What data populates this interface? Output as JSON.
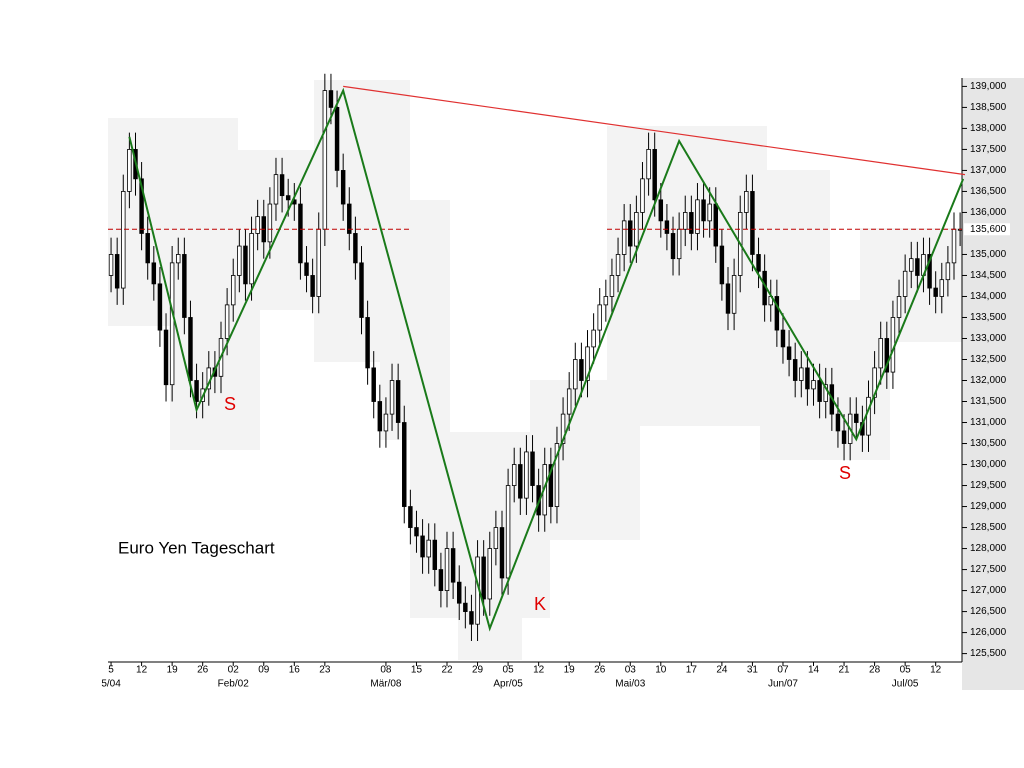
{
  "chart_data": {
    "type": "candlestick",
    "title": "Euro Yen Tageschart",
    "x": [
      0,
      1,
      2,
      3,
      4,
      5,
      6,
      7,
      8,
      9,
      10,
      11,
      12,
      13,
      14,
      15,
      16,
      17,
      18,
      19,
      20,
      21,
      22,
      23,
      24,
      25,
      26,
      27,
      28,
      29,
      30,
      31,
      32,
      33,
      34,
      35,
      36,
      37,
      38,
      39,
      40,
      41,
      42,
      43,
      44,
      45,
      46,
      47,
      48,
      49,
      50,
      51,
      52,
      53,
      54,
      55,
      56,
      57,
      58,
      59,
      60,
      61,
      62,
      63,
      64,
      65,
      66,
      67,
      68,
      69,
      70,
      71,
      72,
      73,
      74,
      75,
      76,
      77,
      78,
      79,
      80,
      81,
      82,
      83,
      84,
      85,
      86,
      87,
      88,
      89,
      90,
      91,
      92,
      93,
      94,
      95,
      96,
      97,
      98,
      99,
      100,
      101,
      102,
      103,
      104,
      105,
      106,
      107,
      108,
      109,
      110,
      111,
      112,
      113,
      114,
      115,
      116,
      117,
      118,
      119,
      120,
      121,
      122,
      123,
      124,
      125,
      126,
      127,
      128,
      129,
      130,
      131,
      132,
      133,
      134,
      135,
      136,
      137,
      138,
      139
    ],
    "open": [
      134.5,
      135.0,
      134.2,
      136.5,
      137.5,
      136.8,
      135.5,
      134.8,
      134.3,
      133.2,
      131.9,
      134.8,
      135.0,
      133.5,
      132.0,
      131.5,
      131.8,
      132.3,
      132.1,
      133.0,
      133.8,
      134.5,
      135.2,
      134.3,
      135.5,
      135.9,
      135.3,
      136.2,
      136.9,
      136.4,
      136.3,
      136.2,
      134.8,
      134.5,
      134.0,
      135.6,
      138.9,
      138.5,
      137.0,
      136.2,
      135.5,
      134.8,
      133.5,
      132.3,
      131.5,
      130.8,
      131.2,
      132.0,
      131.0,
      129.0,
      128.5,
      128.3,
      127.8,
      128.2,
      127.5,
      127.0,
      128.0,
      127.2,
      126.7,
      126.5,
      126.2,
      127.8,
      126.8,
      128.0,
      128.5,
      127.3,
      129.5,
      130.0,
      129.2,
      130.3,
      129.5,
      128.8,
      130.0,
      129.0,
      130.5,
      131.2,
      131.8,
      132.5,
      132.0,
      132.8,
      133.2,
      133.8,
      134.0,
      134.5,
      135.0,
      135.8,
      135.2,
      136.0,
      136.8,
      137.5,
      136.3,
      135.8,
      135.5,
      134.9,
      135.6,
      136.0,
      135.5,
      136.3,
      135.8,
      136.2,
      135.2,
      134.3,
      133.6,
      134.5,
      136.0,
      136.5,
      135.0,
      134.6,
      133.8,
      134.0,
      133.2,
      132.8,
      132.5,
      132.0,
      132.3,
      131.8,
      132.0,
      131.5,
      131.9,
      131.2,
      130.8,
      130.5,
      131.2,
      131.0,
      130.7,
      131.6,
      132.3,
      133.0,
      132.2,
      133.5,
      134.0,
      134.6,
      134.9,
      134.5,
      135.0,
      134.2,
      134.0,
      134.4,
      134.8,
      135.6
    ],
    "high": [
      135.4,
      135.4,
      136.9,
      137.9,
      137.9,
      137.2,
      135.9,
      135.2,
      134.7,
      133.6,
      135.2,
      135.4,
      135.4,
      133.9,
      132.4,
      132.2,
      132.7,
      132.7,
      133.4,
      134.2,
      134.9,
      135.6,
      135.6,
      135.9,
      136.3,
      136.3,
      136.6,
      137.3,
      137.3,
      136.8,
      136.7,
      136.6,
      135.2,
      134.9,
      136.0,
      139.3,
      139.3,
      138.9,
      137.4,
      136.6,
      135.9,
      135.2,
      133.9,
      132.7,
      131.9,
      131.6,
      132.4,
      132.4,
      131.4,
      129.4,
      128.9,
      128.7,
      128.6,
      128.6,
      127.9,
      128.4,
      128.4,
      127.6,
      127.1,
      126.9,
      128.2,
      128.2,
      128.4,
      128.9,
      128.9,
      129.9,
      130.4,
      130.4,
      130.7,
      130.7,
      129.9,
      130.4,
      130.4,
      130.9,
      131.6,
      132.2,
      132.9,
      132.9,
      133.2,
      133.6,
      134.2,
      134.4,
      134.9,
      135.4,
      136.2,
      136.2,
      136.4,
      137.2,
      137.9,
      137.9,
      136.7,
      136.2,
      135.9,
      136.0,
      136.4,
      136.4,
      136.7,
      136.7,
      136.6,
      136.6,
      135.6,
      134.7,
      134.9,
      136.4,
      136.9,
      136.9,
      135.4,
      135.0,
      134.4,
      134.4,
      133.6,
      133.2,
      132.9,
      132.7,
      132.7,
      132.4,
      132.4,
      132.3,
      132.3,
      131.6,
      131.2,
      131.6,
      131.6,
      131.4,
      132.0,
      132.7,
      133.4,
      133.4,
      133.9,
      134.4,
      135.0,
      135.3,
      135.3,
      135.4,
      135.4,
      134.6,
      134.8,
      135.2,
      136.0,
      136.0
    ],
    "low": [
      134.1,
      133.8,
      133.8,
      136.1,
      136.4,
      135.1,
      134.4,
      133.9,
      132.8,
      131.5,
      131.5,
      134.4,
      133.1,
      131.6,
      131.1,
      131.1,
      131.4,
      131.7,
      131.7,
      132.6,
      133.4,
      134.1,
      133.9,
      133.9,
      135.1,
      134.9,
      134.9,
      135.8,
      136.0,
      135.9,
      135.8,
      134.4,
      134.1,
      133.6,
      133.6,
      135.2,
      138.1,
      136.6,
      135.8,
      135.1,
      134.4,
      133.1,
      131.9,
      131.1,
      130.4,
      130.4,
      130.8,
      130.6,
      128.6,
      128.1,
      127.9,
      127.4,
      127.4,
      127.1,
      126.6,
      126.6,
      126.8,
      126.3,
      126.1,
      125.8,
      125.8,
      126.4,
      126.4,
      127.6,
      126.9,
      126.9,
      129.1,
      128.8,
      128.8,
      129.1,
      128.4,
      128.4,
      128.6,
      128.6,
      130.1,
      130.8,
      131.4,
      131.6,
      131.6,
      132.4,
      132.8,
      133.4,
      133.6,
      134.1,
      134.6,
      134.8,
      134.8,
      135.6,
      136.4,
      135.9,
      135.4,
      135.1,
      134.5,
      134.5,
      135.2,
      135.1,
      135.1,
      135.4,
      135.4,
      134.8,
      133.9,
      133.2,
      133.2,
      134.1,
      135.6,
      134.6,
      134.2,
      133.4,
      133.4,
      132.8,
      132.4,
      132.1,
      131.6,
      131.6,
      131.4,
      131.4,
      131.1,
      131.1,
      130.8,
      130.4,
      130.1,
      130.1,
      130.6,
      130.3,
      130.3,
      131.2,
      131.9,
      131.8,
      131.8,
      133.1,
      133.6,
      134.2,
      134.1,
      134.1,
      133.8,
      133.6,
      133.6,
      134.0,
      134.4,
      135.2
    ],
    "close": [
      135.0,
      134.2,
      136.5,
      137.5,
      136.8,
      135.5,
      134.8,
      134.3,
      133.2,
      131.9,
      134.8,
      135.0,
      133.5,
      132.0,
      131.5,
      131.8,
      132.3,
      132.1,
      133.0,
      133.8,
      134.5,
      135.2,
      134.3,
      135.5,
      135.9,
      135.3,
      136.2,
      136.9,
      136.4,
      136.3,
      136.2,
      134.8,
      134.5,
      134.0,
      135.6,
      138.9,
      138.5,
      137.0,
      136.2,
      135.5,
      134.8,
      133.5,
      132.3,
      131.5,
      130.8,
      131.2,
      132.0,
      131.0,
      129.0,
      128.5,
      128.3,
      127.8,
      128.2,
      127.5,
      127.0,
      128.0,
      127.2,
      126.7,
      126.5,
      126.2,
      127.8,
      126.8,
      128.0,
      128.5,
      127.3,
      129.5,
      130.0,
      129.2,
      130.3,
      129.5,
      128.8,
      130.0,
      129.0,
      130.5,
      131.2,
      131.8,
      132.5,
      132.0,
      132.8,
      133.2,
      133.8,
      134.0,
      134.5,
      135.0,
      135.8,
      135.2,
      136.0,
      136.8,
      137.5,
      136.3,
      135.8,
      135.5,
      134.9,
      135.6,
      136.0,
      135.5,
      136.3,
      135.8,
      136.2,
      135.2,
      134.3,
      133.6,
      134.5,
      136.0,
      136.5,
      135.0,
      134.6,
      133.8,
      134.0,
      133.2,
      132.8,
      132.5,
      132.0,
      132.3,
      131.8,
      132.0,
      131.5,
      131.9,
      131.2,
      130.8,
      130.5,
      131.2,
      131.0,
      130.7,
      131.6,
      132.3,
      133.0,
      132.2,
      133.5,
      134.0,
      134.6,
      134.9,
      134.5,
      135.0,
      134.2,
      134.0,
      134.4,
      134.8,
      135.6,
      135.6
    ],
    "up_color": "#ffffff",
    "down_color": "#000000",
    "xlim": [
      -0.5,
      139.8
    ],
    "ylim": [
      125.3,
      139.2
    ],
    "xticks": [
      {
        "value": 0,
        "label": "5"
      },
      {
        "value": 5,
        "label": "12"
      },
      {
        "value": 10,
        "label": "19"
      },
      {
        "value": 15,
        "label": "26"
      },
      {
        "value": 20,
        "label": "02"
      },
      {
        "value": 25,
        "label": "09"
      },
      {
        "value": 30,
        "label": "16"
      },
      {
        "value": 35,
        "label": "23"
      },
      {
        "value": 45,
        "label": "08"
      },
      {
        "value": 50,
        "label": "15"
      },
      {
        "value": 55,
        "label": "22"
      },
      {
        "value": 60,
        "label": "29"
      },
      {
        "value": 65,
        "label": "05"
      },
      {
        "value": 70,
        "label": "12"
      },
      {
        "value": 75,
        "label": "19"
      },
      {
        "value": 80,
        "label": "26"
      },
      {
        "value": 85,
        "label": "03"
      },
      {
        "value": 90,
        "label": "10"
      },
      {
        "value": 95,
        "label": "17"
      },
      {
        "value": 100,
        "label": "24"
      },
      {
        "value": 105,
        "label": "31"
      },
      {
        "value": 110,
        "label": "07"
      },
      {
        "value": 115,
        "label": "14"
      },
      {
        "value": 120,
        "label": "21"
      },
      {
        "value": 125,
        "label": "28"
      },
      {
        "value": 130,
        "label": "05"
      },
      {
        "value": 135,
        "label": "12"
      }
    ],
    "month_labels": [
      {
        "value": 0,
        "label": "5/04"
      },
      {
        "value": 20,
        "label": "Feb/02"
      },
      {
        "value": 45,
        "label": "Mär/08"
      },
      {
        "value": 65,
        "label": "Apr/05"
      },
      {
        "value": 85,
        "label": "Mai/03"
      },
      {
        "value": 110,
        "label": "Jun/07"
      },
      {
        "value": 130,
        "label": "Jul/05"
      }
    ],
    "yticks": [
      {
        "value": 125.5,
        "label": "125,500"
      },
      {
        "value": 126,
        "label": "126,000"
      },
      {
        "value": 126.5,
        "label": "126,500"
      },
      {
        "value": 127,
        "label": "127,000"
      },
      {
        "value": 127.5,
        "label": "127,500"
      },
      {
        "value": 128,
        "label": "128,000"
      },
      {
        "value": 128.5,
        "label": "128,500"
      },
      {
        "value": 129,
        "label": "129,000"
      },
      {
        "value": 129.5,
        "label": "129,500"
      },
      {
        "value": 130,
        "label": "130,000"
      },
      {
        "value": 130.5,
        "label": "130,500"
      },
      {
        "value": 131,
        "label": "131,000"
      },
      {
        "value": 131.5,
        "label": "131,500"
      },
      {
        "value": 132,
        "label": "132,000"
      },
      {
        "value": 132.5,
        "label": "132,500"
      },
      {
        "value": 133,
        "label": "133,000"
      },
      {
        "value": 133.5,
        "label": "133,500"
      },
      {
        "value": 134,
        "label": "134,000"
      },
      {
        "value": 134.5,
        "label": "134,500"
      },
      {
        "value": 135,
        "label": "135,000"
      },
      {
        "value": 136,
        "label": "136,000"
      },
      {
        "value": 136.5,
        "label": "136,500"
      },
      {
        "value": 137,
        "label": "137,000"
      },
      {
        "value": 137.5,
        "label": "137,500"
      },
      {
        "value": 138,
        "label": "138,000"
      },
      {
        "value": 138.5,
        "label": "138,500"
      },
      {
        "value": 139,
        "label": "139,000"
      }
    ],
    "level": {
      "value": 135.6,
      "label": "135,600",
      "color": "#c00000"
    },
    "trend_lines": [
      {
        "color": "#1a7a1a",
        "x": [
          3,
          14,
          38,
          62,
          93,
          122,
          139.5
        ],
        "y": [
          137.8,
          131.3,
          138.9,
          126.1,
          137.7,
          130.6,
          136.8
        ]
      },
      {
        "color": "#e03030",
        "x": [
          38,
          139.8
        ],
        "y": [
          139.0,
          136.9
        ]
      }
    ],
    "annotations": [
      {
        "text": "S",
        "color": "#e00000"
      },
      {
        "text": "K",
        "color": "#e00000"
      },
      {
        "text": "S",
        "color": "#e00000"
      }
    ]
  }
}
